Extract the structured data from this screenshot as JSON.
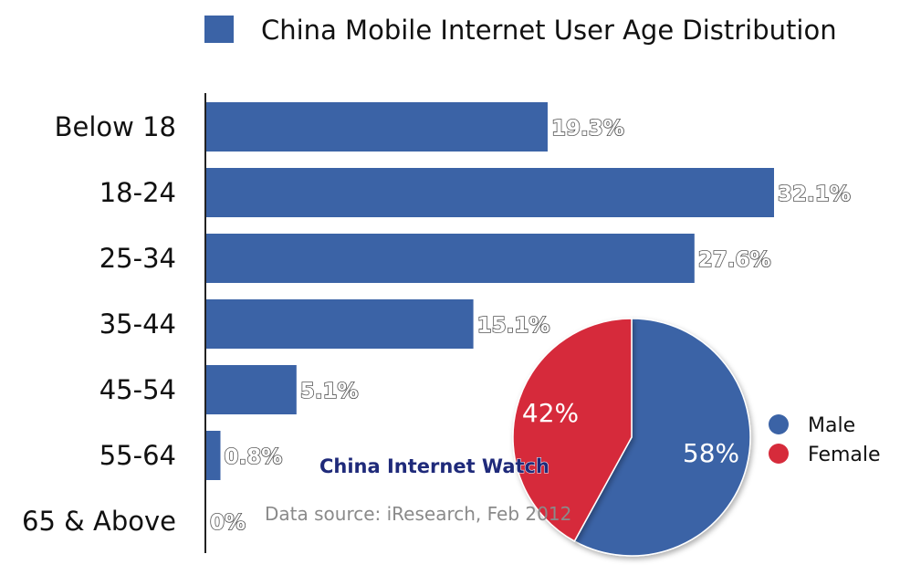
{
  "chart_data": [
    {
      "type": "bar",
      "orientation": "horizontal",
      "title": "China Mobile Internet User Age Distribution",
      "categories": [
        "Below 18",
        "18-24",
        "25-34",
        "35-44",
        "45-54",
        "55-64",
        "65 & Above"
      ],
      "values": [
        19.3,
        32.1,
        27.6,
        15.1,
        5.1,
        0.8,
        0
      ],
      "value_labels": [
        "19.3%",
        "32.1%",
        "27.6%",
        "15.1%",
        "5.1%",
        "0.8%",
        "0%"
      ],
      "color": "#3b63a6",
      "xlim": [
        0,
        35
      ],
      "grid": false,
      "legend_position": "top"
    },
    {
      "type": "pie",
      "slices": [
        {
          "name": "Male",
          "value": 58,
          "label": "58%",
          "color": "#3b63a6"
        },
        {
          "name": "Female",
          "value": 42,
          "label": "42%",
          "color": "#d62b3b"
        }
      ],
      "legend_position": "right"
    }
  ],
  "watermark": "China Internet Watch",
  "source": "Data source: iResearch, Feb 2012"
}
